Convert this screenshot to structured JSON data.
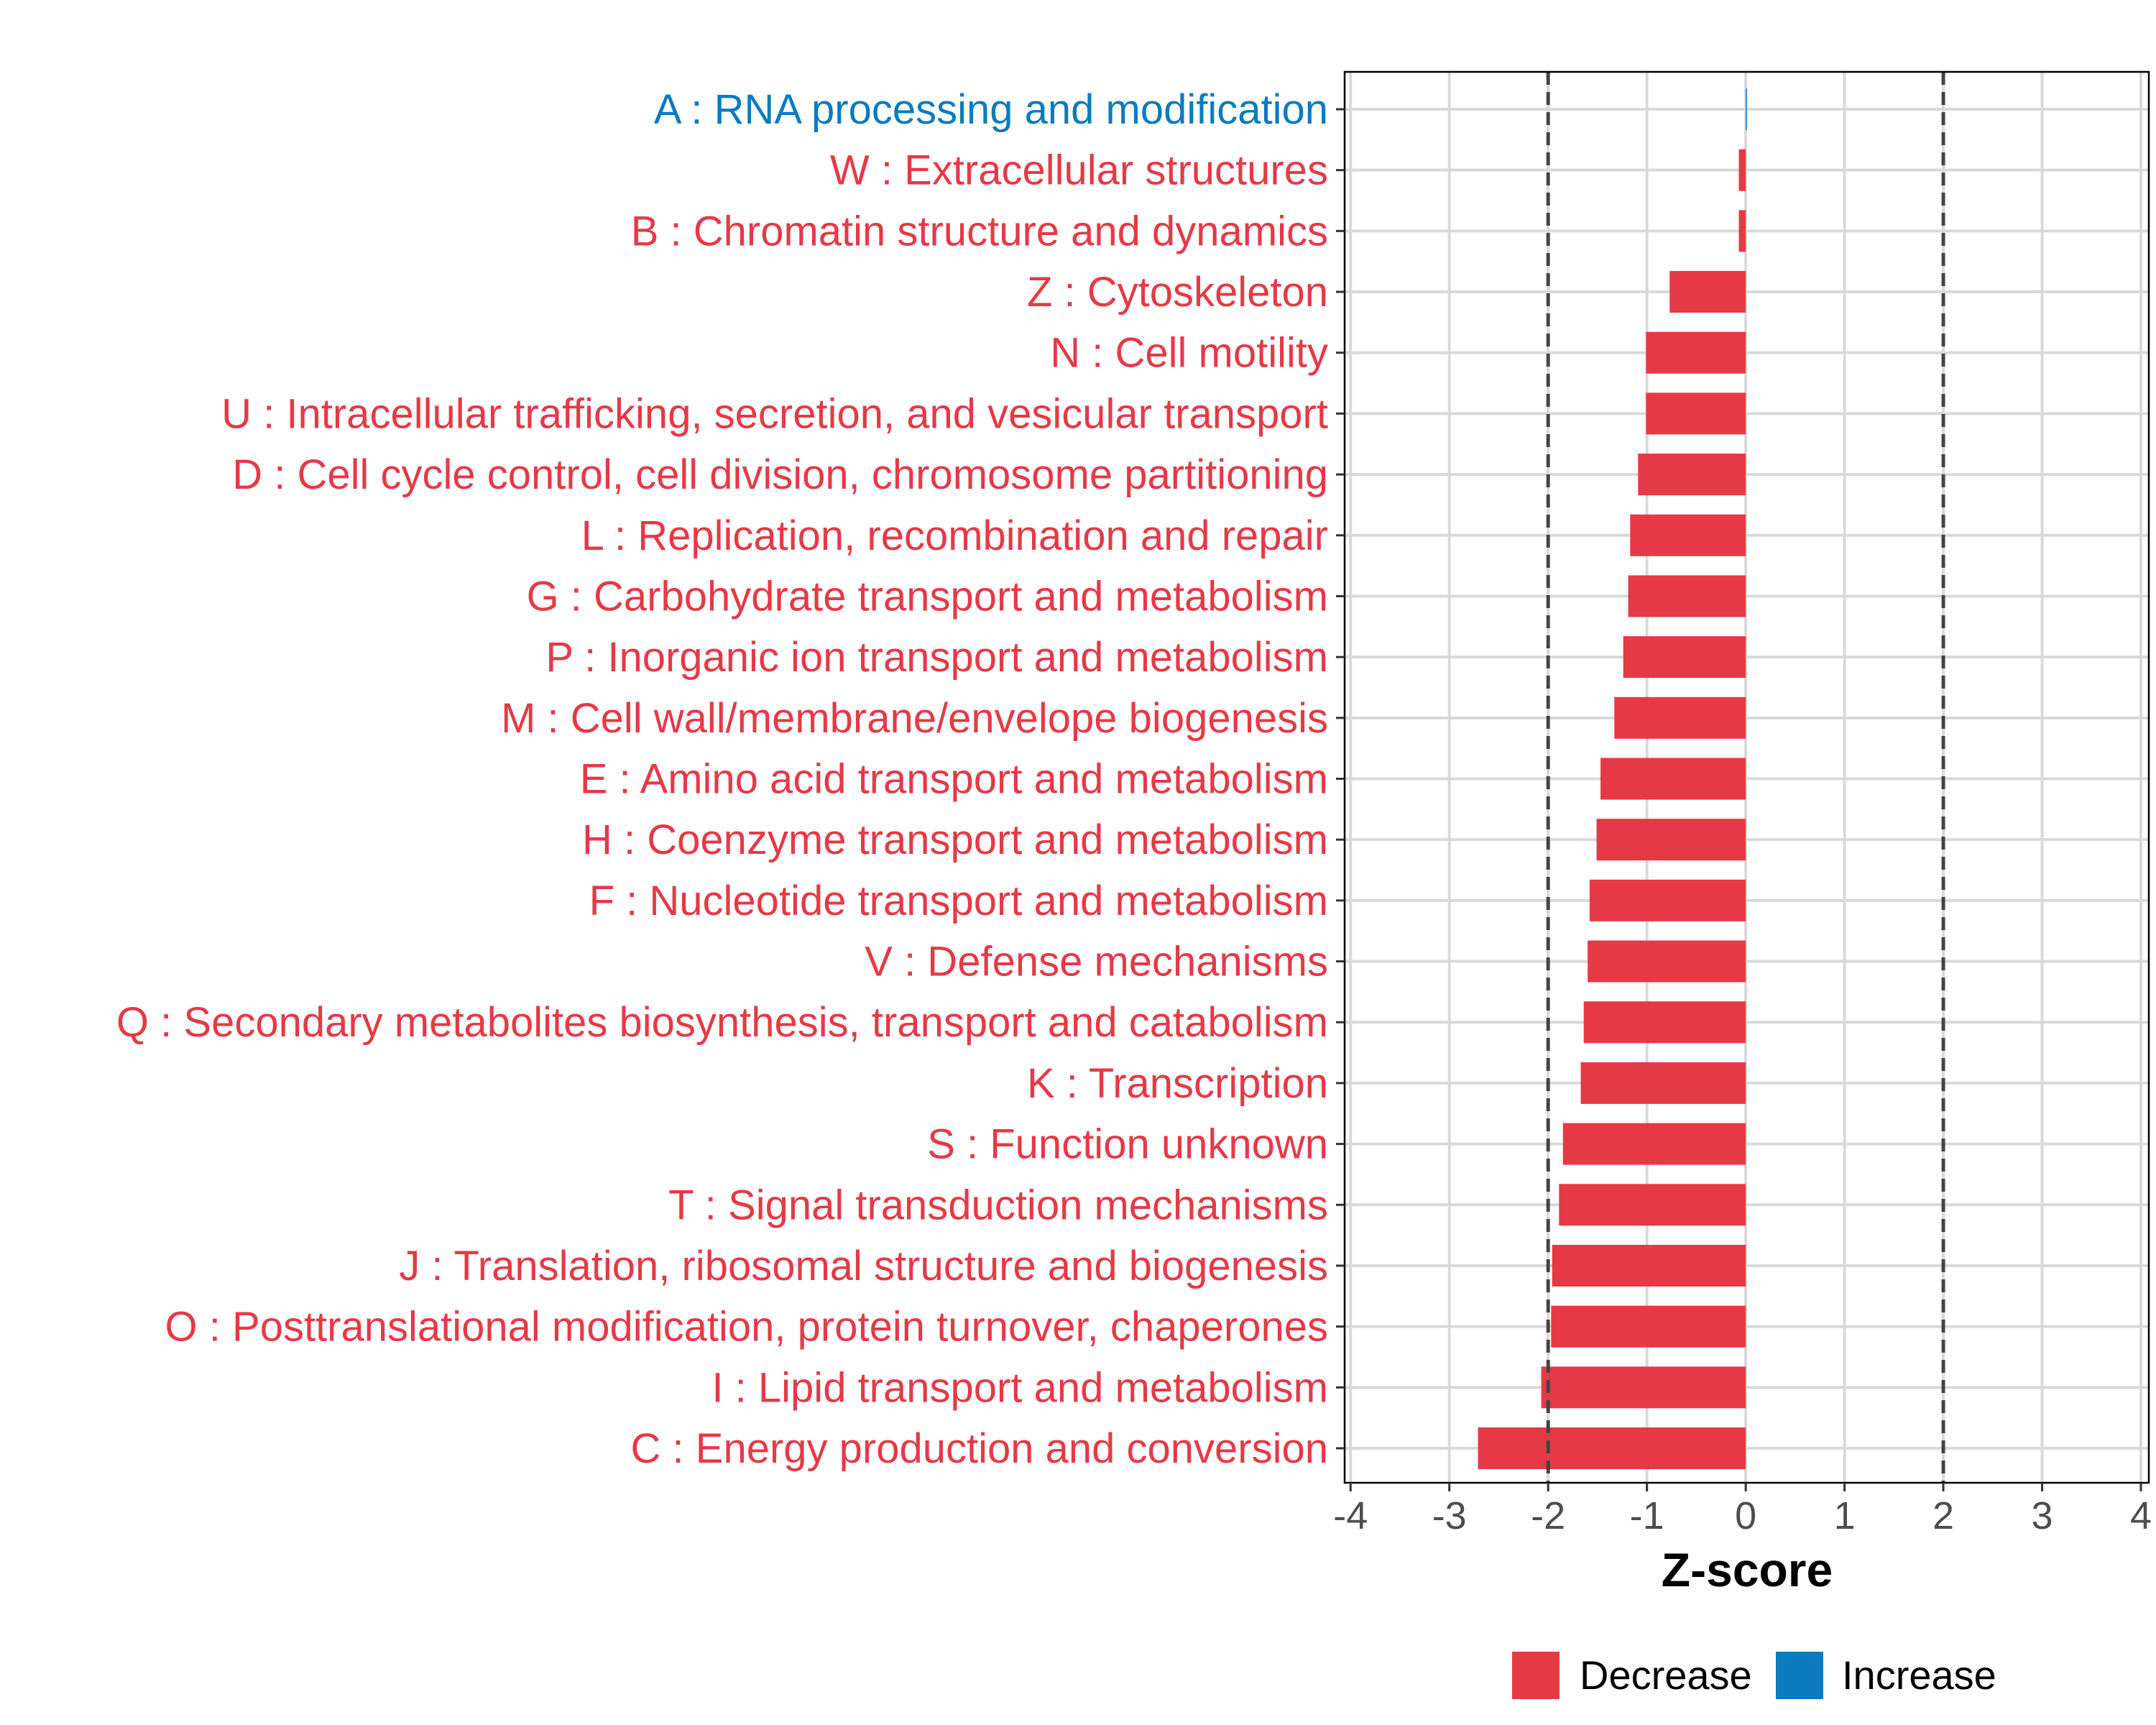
{
  "chart_data": {
    "type": "bar",
    "orientation": "horizontal",
    "title": "",
    "xlabel": "Z-score",
    "ylabel": "",
    "xlim": [
      -4,
      4
    ],
    "xticks": [
      "-4",
      "-3",
      "-2",
      "-1",
      "0",
      "1",
      "2",
      "3",
      "4"
    ],
    "tick_values": [
      -4,
      -3,
      -2,
      -1,
      0,
      1,
      2,
      3,
      4
    ],
    "threshold_lines": [
      -2,
      2
    ],
    "grid": true,
    "colors": {
      "Decrease": "#e63946",
      "Increase": "#0a7bbf"
    },
    "legend": {
      "position": "bottom",
      "entries": [
        "Decrease",
        "Increase"
      ]
    },
    "categories": [
      "A : RNA processing and modification",
      "W : Extracellular structures",
      "B : Chromatin structure and dynamics",
      "Z : Cytoskeleton",
      "N : Cell motility",
      "U : Intracellular trafficking, secretion, and vesicular transport",
      "D : Cell cycle control, cell division, chromosome partitioning",
      "L : Replication, recombination and repair",
      "G : Carbohydrate transport and metabolism",
      "P : Inorganic ion transport and metabolism",
      "M : Cell wall/membrane/envelope biogenesis",
      "E : Amino acid transport and metabolism",
      "H : Coenzyme transport and metabolism",
      "F : Nucleotide transport and metabolism",
      "V : Defense mechanisms",
      "Q : Secondary metabolites biosynthesis, transport and catabolism",
      "K : Transcription",
      "S : Function unknown",
      "T : Signal transduction mechanisms",
      "J : Translation, ribosomal structure and biogenesis",
      "O : Posttranslational modification, protein turnover, chaperones",
      "I : Lipid transport and metabolism",
      "C : Energy production and conversion"
    ],
    "values": [
      0.01,
      -0.07,
      -0.07,
      -0.77,
      -1.01,
      -1.01,
      -1.09,
      -1.17,
      -1.19,
      -1.24,
      -1.33,
      -1.47,
      -1.51,
      -1.58,
      -1.6,
      -1.64,
      -1.67,
      -1.85,
      -1.89,
      -1.96,
      -1.97,
      -2.07,
      -2.71
    ],
    "direction": [
      "Increase",
      "Decrease",
      "Decrease",
      "Decrease",
      "Decrease",
      "Decrease",
      "Decrease",
      "Decrease",
      "Decrease",
      "Decrease",
      "Decrease",
      "Decrease",
      "Decrease",
      "Decrease",
      "Decrease",
      "Decrease",
      "Decrease",
      "Decrease",
      "Decrease",
      "Decrease",
      "Decrease",
      "Decrease",
      "Decrease"
    ]
  }
}
